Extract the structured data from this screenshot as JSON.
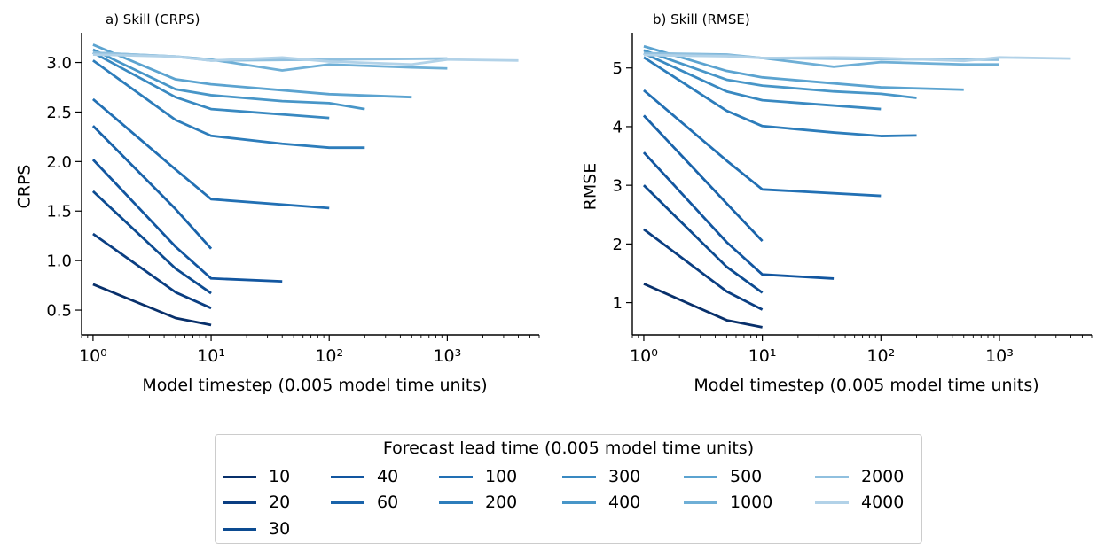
{
  "legend": {
    "title": "Forecast lead time (0.005 model time units)"
  },
  "chart_data": [
    {
      "type": "line",
      "title": "a) Skill (CRPS)",
      "xlabel": "Model timestep (0.005 model time units)",
      "ylabel": "CRPS",
      "xscale": "log",
      "xlim": [
        0.8,
        6000
      ],
      "ylim": [
        0.25,
        3.3
      ],
      "x_ticks": [
        1,
        10,
        100,
        1000
      ],
      "x_tick_labels": [
        "10⁰",
        "10¹",
        "10²",
        "10³"
      ],
      "y_ticks": [
        0.5,
        1.0,
        1.5,
        2.0,
        2.5,
        3.0
      ],
      "y_tick_labels": [
        "0.5",
        "1.0",
        "1.5",
        "2.0",
        "2.5",
        "3.0"
      ],
      "grid": false,
      "series": [
        {
          "name": "10",
          "color": "#08306b",
          "x": [
            1,
            5,
            10
          ],
          "y": [
            0.76,
            0.42,
            0.35
          ]
        },
        {
          "name": "20",
          "color": "#0a3e82",
          "x": [
            1,
            5,
            10
          ],
          "y": [
            1.27,
            0.68,
            0.52
          ]
        },
        {
          "name": "30",
          "color": "#0c4b91",
          "x": [
            1,
            5,
            10
          ],
          "y": [
            1.7,
            0.92,
            0.67
          ]
        },
        {
          "name": "40",
          "color": "#1256a0",
          "x": [
            1,
            5,
            10,
            40
          ],
          "y": [
            2.02,
            1.14,
            0.82,
            0.79
          ]
        },
        {
          "name": "60",
          "color": "#1963aa",
          "x": [
            1,
            5,
            10
          ],
          "y": [
            2.36,
            1.52,
            1.12
          ]
        },
        {
          "name": "100",
          "color": "#2270b4",
          "x": [
            1,
            5,
            10,
            100
          ],
          "y": [
            2.63,
            1.92,
            1.62,
            1.53
          ]
        },
        {
          "name": "200",
          "color": "#2d7dbb",
          "x": [
            1,
            5,
            10,
            40,
            100,
            200
          ],
          "y": [
            3.02,
            2.42,
            2.26,
            2.18,
            2.14,
            2.14
          ]
        },
        {
          "name": "300",
          "color": "#3989c1",
          "x": [
            1,
            5,
            10,
            100
          ],
          "y": [
            3.1,
            2.65,
            2.53,
            2.44
          ]
        },
        {
          "name": "400",
          "color": "#4896c8",
          "x": [
            1,
            5,
            10,
            40,
            100,
            200
          ],
          "y": [
            3.13,
            2.73,
            2.67,
            2.61,
            2.59,
            2.53
          ]
        },
        {
          "name": "500",
          "color": "#5ba3d0",
          "x": [
            1,
            5,
            10,
            100,
            500
          ],
          "y": [
            3.18,
            2.83,
            2.78,
            2.68,
            2.65
          ]
        },
        {
          "name": "1000",
          "color": "#6fafd6",
          "x": [
            1,
            5,
            10,
            40,
            100,
            500,
            1000
          ],
          "y": [
            3.1,
            3.06,
            3.03,
            2.92,
            2.98,
            2.95,
            2.94
          ]
        },
        {
          "name": "2000",
          "color": "#90c0df",
          "x": [
            1,
            5,
            10,
            100,
            1000
          ],
          "y": [
            3.1,
            3.06,
            3.02,
            3.03,
            3.04
          ]
        },
        {
          "name": "4000",
          "color": "#b2d2e8",
          "x": [
            1,
            5,
            10,
            40,
            100,
            500,
            1000,
            4000
          ],
          "y": [
            3.08,
            3.06,
            3.02,
            3.05,
            3.01,
            2.98,
            3.03,
            3.02
          ]
        }
      ]
    },
    {
      "type": "line",
      "title": "b) Skill (RMSE)",
      "xlabel": "Model timestep (0.005 model time units)",
      "ylabel": "RMSE",
      "xscale": "log",
      "xlim": [
        0.8,
        6000
      ],
      "ylim": [
        0.45,
        5.6
      ],
      "x_ticks": [
        1,
        10,
        100,
        1000
      ],
      "x_tick_labels": [
        "10⁰",
        "10¹",
        "10²",
        "10³"
      ],
      "y_ticks": [
        1,
        2,
        3,
        4,
        5
      ],
      "y_tick_labels": [
        "1",
        "2",
        "3",
        "4",
        "5"
      ],
      "grid": false,
      "series": [
        {
          "name": "10",
          "color": "#08306b",
          "x": [
            1,
            5,
            10
          ],
          "y": [
            1.32,
            0.7,
            0.58
          ]
        },
        {
          "name": "20",
          "color": "#0a3e82",
          "x": [
            1,
            5,
            10
          ],
          "y": [
            2.25,
            1.19,
            0.88
          ]
        },
        {
          "name": "30",
          "color": "#0c4b91",
          "x": [
            1,
            5,
            10
          ],
          "y": [
            3.0,
            1.61,
            1.17
          ]
        },
        {
          "name": "40",
          "color": "#1256a0",
          "x": [
            1,
            5,
            10,
            40
          ],
          "y": [
            3.56,
            2.03,
            1.48,
            1.41
          ]
        },
        {
          "name": "60",
          "color": "#1963aa",
          "x": [
            1,
            5,
            10
          ],
          "y": [
            4.19,
            2.69,
            2.05
          ]
        },
        {
          "name": "100",
          "color": "#2270b4",
          "x": [
            1,
            5,
            10,
            100
          ],
          "y": [
            4.62,
            3.42,
            2.93,
            2.82
          ]
        },
        {
          "name": "200",
          "color": "#2d7dbb",
          "x": [
            1,
            5,
            10,
            40,
            100,
            200
          ],
          "y": [
            5.18,
            4.27,
            4.01,
            3.9,
            3.84,
            3.85
          ]
        },
        {
          "name": "300",
          "color": "#3989c1",
          "x": [
            1,
            5,
            10,
            100
          ],
          "y": [
            5.25,
            4.6,
            4.45,
            4.3
          ]
        },
        {
          "name": "400",
          "color": "#4896c8",
          "x": [
            1,
            5,
            10,
            40,
            100,
            200
          ],
          "y": [
            5.3,
            4.8,
            4.7,
            4.6,
            4.56,
            4.49
          ]
        },
        {
          "name": "500",
          "color": "#5ba3d0",
          "x": [
            1,
            5,
            10,
            100,
            500
          ],
          "y": [
            5.37,
            4.95,
            4.84,
            4.67,
            4.63
          ]
        },
        {
          "name": "1000",
          "color": "#6fafd6",
          "x": [
            1,
            5,
            10,
            40,
            100,
            500,
            1000
          ],
          "y": [
            5.25,
            5.23,
            5.17,
            5.02,
            5.1,
            5.06,
            5.06
          ]
        },
        {
          "name": "2000",
          "color": "#90c0df",
          "x": [
            1,
            5,
            10,
            100,
            1000
          ],
          "y": [
            5.25,
            5.22,
            5.17,
            5.15,
            5.14
          ]
        },
        {
          "name": "4000",
          "color": "#b2d2e8",
          "x": [
            1,
            5,
            10,
            40,
            100,
            500,
            1000,
            4000
          ],
          "y": [
            5.22,
            5.2,
            5.17,
            5.18,
            5.17,
            5.12,
            5.18,
            5.16
          ]
        }
      ]
    }
  ]
}
